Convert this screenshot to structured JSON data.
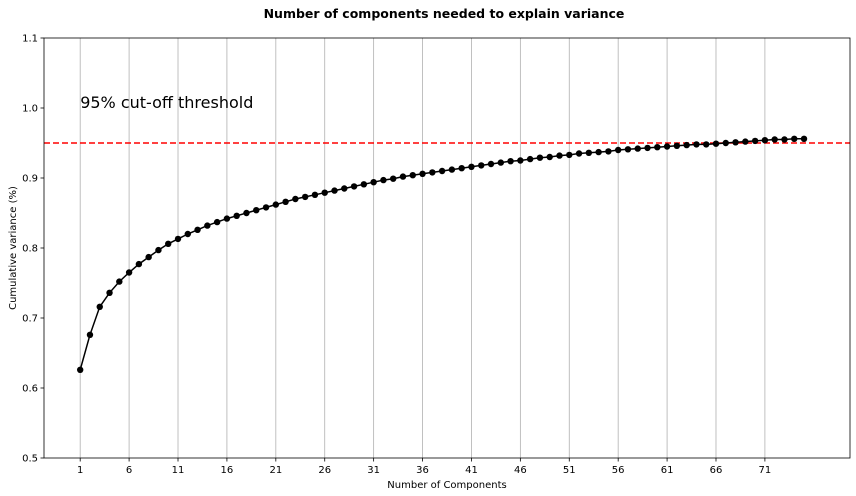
{
  "chart_data": {
    "type": "line",
    "title": "Number of components needed to explain variance",
    "xlabel": "Number of Components",
    "ylabel": "Cumulative variance (%)",
    "xlim": [
      -2.7,
      79.7
    ],
    "ylim": [
      0.5,
      1.1
    ],
    "xticks": [
      1,
      6,
      11,
      16,
      21,
      26,
      31,
      36,
      41,
      46,
      51,
      56,
      61,
      66,
      71
    ],
    "yticks": [
      0.5,
      0.6,
      0.7,
      0.8,
      0.9,
      1.0,
      1.1
    ],
    "ytick_labels": [
      "0.5",
      "0.6",
      "0.7",
      "0.8",
      "0.9",
      "1.0",
      "1.1"
    ],
    "grid": "vertical",
    "threshold": {
      "y": 0.95,
      "color": "#ff0000",
      "style": "dashed"
    },
    "annotation": {
      "text": "95% cut-off threshold",
      "x": 1,
      "y": 1.0
    },
    "line_color": "#000000",
    "series": [
      {
        "x": [
          1,
          2,
          3,
          4,
          5,
          6,
          7,
          8,
          9,
          10,
          11,
          12,
          13,
          14,
          15,
          16,
          17,
          18,
          19,
          20,
          21,
          22,
          23,
          24,
          25,
          26,
          27,
          28,
          29,
          30,
          31,
          32,
          33,
          34,
          35,
          36,
          37,
          38,
          39,
          40,
          41,
          42,
          43,
          44,
          45,
          46,
          47,
          48,
          49,
          50,
          51,
          52,
          53,
          54,
          55,
          56,
          57,
          58,
          59,
          60,
          61,
          62,
          63,
          64,
          65,
          66,
          67,
          68,
          69,
          70,
          71,
          72,
          73,
          74,
          75
        ],
        "values": [
          0.626,
          0.676,
          0.716,
          0.736,
          0.752,
          0.765,
          0.777,
          0.787,
          0.797,
          0.806,
          0.813,
          0.82,
          0.826,
          0.832,
          0.837,
          0.842,
          0.846,
          0.85,
          0.854,
          0.858,
          0.862,
          0.866,
          0.87,
          0.873,
          0.876,
          0.879,
          0.882,
          0.885,
          0.888,
          0.891,
          0.894,
          0.897,
          0.899,
          0.902,
          0.904,
          0.906,
          0.908,
          0.91,
          0.912,
          0.914,
          0.916,
          0.918,
          0.92,
          0.922,
          0.924,
          0.925,
          0.927,
          0.929,
          0.93,
          0.932,
          0.933,
          0.935,
          0.936,
          0.937,
          0.938,
          0.94,
          0.941,
          0.942,
          0.943,
          0.944,
          0.945,
          0.946,
          0.947,
          0.948,
          0.948,
          0.949,
          0.95,
          0.951,
          0.952,
          0.953,
          0.954,
          0.955,
          0.955,
          0.956,
          0.956
        ]
      }
    ]
  }
}
